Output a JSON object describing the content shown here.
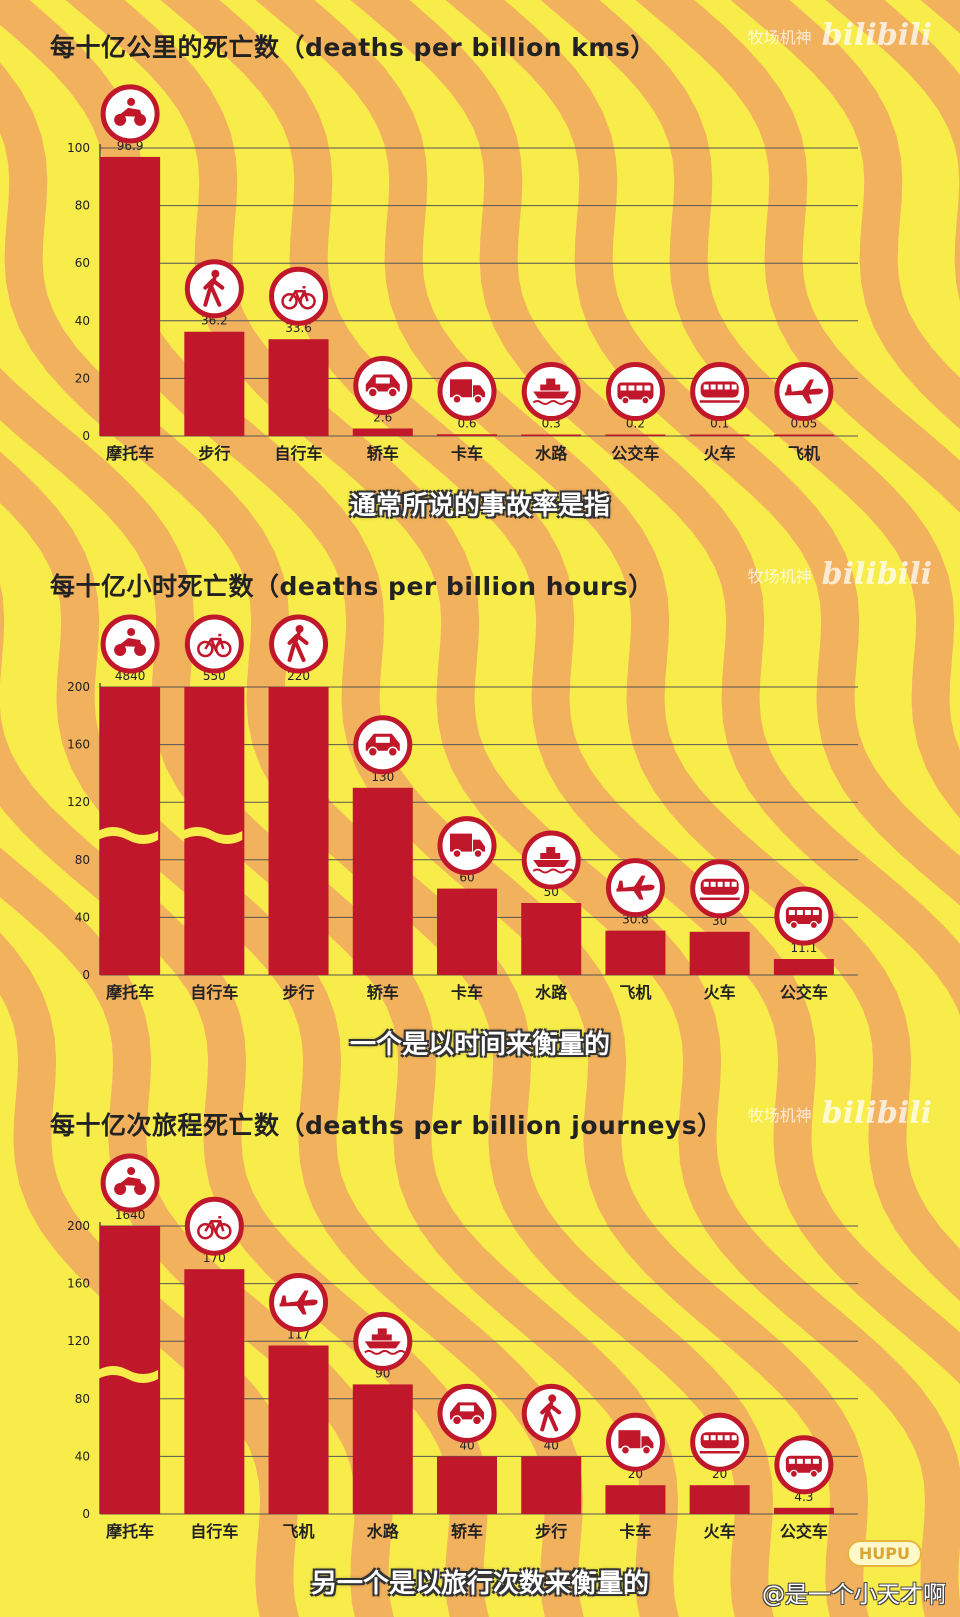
{
  "colors": {
    "background": "#f7ec4a",
    "stripe": "#f2b15c",
    "bar": "#c1172b",
    "grid": "#555555",
    "icon_ring": "#c1172b"
  },
  "watermark": {
    "channel": "牧场机神",
    "logo": "bilibili"
  },
  "panels": [
    {
      "title": "每十亿公里的死亡数（deaths per billion kms）",
      "subtitle": "通常所说的事故率是指"
    },
    {
      "title": "每十亿小时死亡数（deaths per billion hours）",
      "subtitle": "一个是以时间来衡量的"
    },
    {
      "title": "每十亿次旅程死亡数（deaths per billion journeys）",
      "subtitle": "另一个是以旅行次数来衡量的"
    }
  ],
  "chart_data": [
    {
      "type": "bar",
      "title": "每十亿公里的死亡数（deaths per billion kms）",
      "ylim": [
        0,
        100
      ],
      "yticks": [
        0,
        20,
        40,
        60,
        80,
        100
      ],
      "grid": true,
      "categories": [
        "摩托车",
        "步行",
        "自行车",
        "轿车",
        "卡车",
        "水路",
        "公交车",
        "火车",
        "飞机"
      ],
      "values": [
        96.9,
        36.2,
        33.6,
        2.6,
        0.6,
        0.3,
        0.2,
        0.1,
        0.05
      ],
      "value_labels": [
        "96.9",
        "36.2",
        "33.6",
        "2.6",
        "0.6",
        "0.3",
        "0.2",
        "0.1",
        "0.05"
      ],
      "icons": [
        "motorcycle-icon",
        "pedestrian-icon",
        "bicycle-icon",
        "car-icon",
        "truck-icon",
        "ship-icon",
        "bus-icon",
        "train-icon",
        "airplane-icon"
      ],
      "axis_break": [
        false,
        false,
        false,
        false,
        false,
        false,
        false,
        false,
        false
      ]
    },
    {
      "type": "bar",
      "title": "每十亿小时死亡数（deaths per billion hours）",
      "ylim": [
        0,
        200
      ],
      "yticks": [
        0,
        40,
        80,
        120,
        160,
        200
      ],
      "grid": true,
      "categories": [
        "摩托车",
        "自行车",
        "步行",
        "轿车",
        "卡车",
        "水路",
        "飞机",
        "火车",
        "公交车"
      ],
      "values": [
        4840,
        550,
        220,
        130,
        60,
        50,
        30.8,
        30,
        11.1
      ],
      "value_labels": [
        "4840",
        "550",
        "220",
        "130",
        "60",
        "50",
        "30.8",
        "30",
        "11.1"
      ],
      "icons": [
        "motorcycle-icon",
        "bicycle-icon",
        "pedestrian-icon",
        "car-icon",
        "truck-icon",
        "ship-icon",
        "airplane-icon",
        "train-icon",
        "bus-icon"
      ],
      "axis_break": [
        true,
        true,
        false,
        false,
        false,
        false,
        false,
        false,
        false
      ]
    },
    {
      "type": "bar",
      "title": "每十亿次旅程死亡数（deaths per billion journeys）",
      "ylim": [
        0,
        200
      ],
      "yticks": [
        0,
        40,
        80,
        120,
        160,
        200
      ],
      "grid": true,
      "categories": [
        "摩托车",
        "自行车",
        "飞机",
        "水路",
        "轿车",
        "步行",
        "卡车",
        "火车",
        "公交车"
      ],
      "values": [
        1640,
        170,
        117,
        90,
        40,
        40,
        20,
        20,
        4.3
      ],
      "value_labels": [
        "1640",
        "170",
        "117",
        "90",
        "40",
        "40",
        "20",
        "20",
        "4.3"
      ],
      "icons": [
        "motorcycle-icon",
        "bicycle-icon",
        "airplane-icon",
        "ship-icon",
        "car-icon",
        "pedestrian-icon",
        "truck-icon",
        "train-icon",
        "bus-icon"
      ],
      "axis_break": [
        true,
        false,
        false,
        false,
        false,
        false,
        false,
        false,
        false
      ]
    }
  ],
  "footer": {
    "badge": "HUPU",
    "author": "@是一个小天才啊"
  }
}
